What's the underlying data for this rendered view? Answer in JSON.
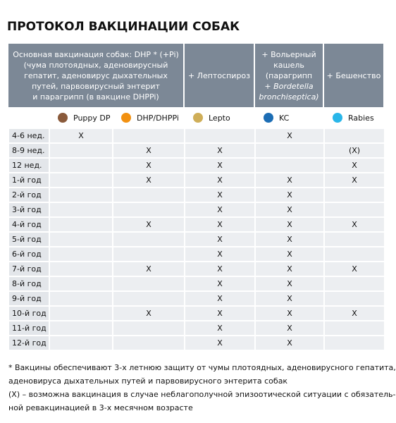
{
  "title": "ПРОТОКОЛ ВАКЦИНАЦИИ СОБАК",
  "header": [
    {
      "lines": [
        "Основная вакцинация собак: DHP * (+Pi)",
        "(чума плотоядных, аденовирусный",
        "гепатит, аденовирус дыхательных",
        "путей, парвовирусный энтерит",
        "и парагрипп (в вакцине DHPPi)"
      ]
    },
    {
      "lines": [
        "+ Лептоспироз"
      ]
    },
    {
      "lines": [
        "+ Вольерный",
        "кашель",
        "(парагрипп",
        "+ Bordetella",
        "bronchiseptica)"
      ],
      "italic_from": 3
    },
    {
      "lines": [
        "+ Бешенство"
      ]
    }
  ],
  "legend": [
    {
      "name": "Puppy DP",
      "color": "#8a5a3b"
    },
    {
      "name": "DHP/DHPPi",
      "color": "#f29111"
    },
    {
      "name": "Lepto",
      "color": "#cfae58"
    },
    {
      "name": "KC",
      "color": "#1c6db4"
    },
    {
      "name": "Rabies",
      "color": "#29b6e9"
    }
  ],
  "rows": [
    {
      "label": "4-6 нед.",
      "cells": [
        "X",
        null,
        null,
        "X",
        null
      ]
    },
    {
      "label": "8-9 нед.",
      "cells": [
        null,
        "X",
        "X",
        null,
        "(X)"
      ]
    },
    {
      "label": "12 нед.",
      "cells": [
        null,
        "X",
        "X",
        null,
        "X"
      ]
    },
    {
      "label": "1-й год",
      "cells": [
        null,
        "X",
        "X",
        "X",
        "X"
      ]
    },
    {
      "label": "2-й год",
      "cells": [
        null,
        null,
        "X",
        "X",
        null
      ]
    },
    {
      "label": "3-й год",
      "cells": [
        null,
        null,
        "X",
        "X",
        null
      ]
    },
    {
      "label": "4-й год",
      "cells": [
        null,
        "X",
        "X",
        "X",
        "X"
      ]
    },
    {
      "label": "5-й год",
      "cells": [
        null,
        null,
        "X",
        "X",
        null
      ]
    },
    {
      "label": "6-й год",
      "cells": [
        null,
        null,
        "X",
        "X",
        null
      ]
    },
    {
      "label": "7-й год",
      "cells": [
        null,
        "X",
        "X",
        "X",
        "X"
      ]
    },
    {
      "label": "8-й год",
      "cells": [
        null,
        null,
        "X",
        "X",
        null
      ]
    },
    {
      "label": "9-й год",
      "cells": [
        null,
        null,
        "X",
        "X",
        null
      ]
    },
    {
      "label": "10-й год",
      "cells": [
        null,
        "X",
        "X",
        "X",
        "X"
      ]
    },
    {
      "label": "11-й год",
      "cells": [
        null,
        null,
        "X",
        "X",
        null
      ]
    },
    {
      "label": "12-й год",
      "cells": [
        null,
        null,
        "X",
        "X",
        null
      ]
    }
  ],
  "footnote": [
    "* Вакцины обеспечивают 3-х летнюю защиту от чумы плотоядных, аденовирусного гепатита,",
    "аденовируса дыхательных путей и парвовирусного энтерита собак",
    "(X) – возможна вакцинация в случае неблагополучной эпизоотической ситуации с обязатель-",
    "ной ревакцинацией в 3-х месячном возрасте"
  ]
}
